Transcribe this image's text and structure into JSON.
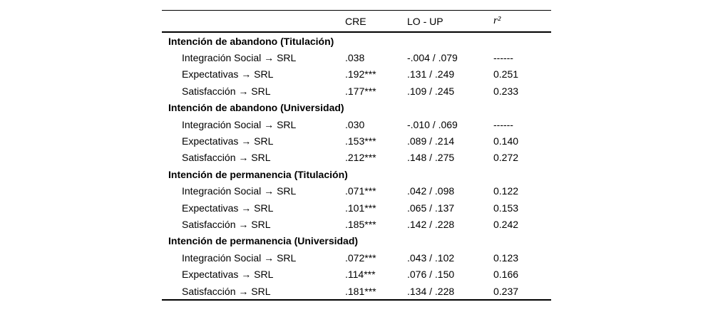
{
  "page": {
    "background": "#ffffff",
    "text_color": "#000000",
    "rule_color": "#000000"
  },
  "table": {
    "header": {
      "label": "",
      "cre": "CRE",
      "lo_up": "LO - UP",
      "r2": "r²"
    },
    "sections": [
      {
        "title": "Intención de abandono (Titulación)",
        "rows": [
          {
            "label": "Integración Social → SRL",
            "cre": ".038",
            "lo_up": "-.004 / .079",
            "r2": "------"
          },
          {
            "label": "Expectativas → SRL",
            "cre": ".192***",
            "lo_up": ".131 / .249",
            "r2": "0.251"
          },
          {
            "label": "Satisfacción → SRL",
            "cre": ".177***",
            "lo_up": ".109 / .245",
            "r2": "0.233"
          }
        ]
      },
      {
        "title": "Intención de abandono (Universidad)",
        "rows": [
          {
            "label": "Integración Social → SRL",
            "cre": ".030",
            "lo_up": "-.010 / .069",
            "r2": "------"
          },
          {
            "label": "Expectativas → SRL",
            "cre": ".153***",
            "lo_up": ".089 / .214",
            "r2": "0.140"
          },
          {
            "label": "Satisfacción → SRL",
            "cre": ".212***",
            "lo_up": ".148 / .275",
            "r2": "0.272"
          }
        ]
      },
      {
        "title": "Intención de permanencia (Titulación)",
        "rows": [
          {
            "label": "Integración Social → SRL",
            "cre": ".071***",
            "lo_up": ".042 / .098",
            "r2": "0.122"
          },
          {
            "label": "Expectativas → SRL",
            "cre": ".101***",
            "lo_up": ".065 / .137",
            "r2": "0.153"
          },
          {
            "label": "Satisfacción → SRL",
            "cre": ".185***",
            "lo_up": ".142 / .228",
            "r2": "0.242"
          }
        ]
      },
      {
        "title": "Intención de permanencia (Universidad)",
        "rows": [
          {
            "label": "Integración Social → SRL",
            "cre": ".072***",
            "lo_up": ".043 / .102",
            "r2": "0.123"
          },
          {
            "label": "Expectativas → SRL",
            "cre": ".114***",
            "lo_up": ".076 / .150",
            "r2": "0.166"
          },
          {
            "label": "Satisfacción → SRL",
            "cre": ".181***",
            "lo_up": ".134 / .228",
            "r2": "0.237"
          }
        ]
      }
    ]
  }
}
